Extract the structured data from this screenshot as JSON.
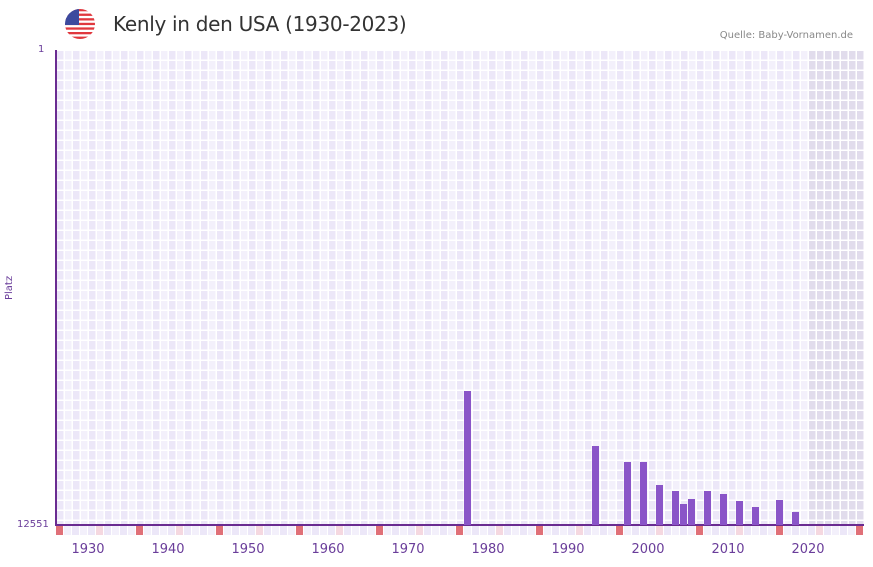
{
  "header": {
    "title": "Kenly in den USA (1930-2023)",
    "source": "Quelle: Baby-Vornamen.de",
    "flag_icon": "us-flag-icon"
  },
  "colors": {
    "bar": "#8a55c8",
    "axis": "#6a2c91",
    "grid_bg_a": "#ece7f8",
    "grid_bg_b": "#f3f0fb",
    "future_shade": "#e1dcec",
    "decade_marker": "#e07078",
    "halfdecade_marker": "#f5d8e0"
  },
  "chart_data": {
    "type": "bar",
    "title": "Kenly in den USA (1930-2023)",
    "xlabel": "",
    "ylabel": "Platz",
    "y_inverted": true,
    "ylim": [
      1,
      12551
    ],
    "xlim": [
      1928,
      2028
    ],
    "y_tick_labels": [
      "1",
      "12551"
    ],
    "x_tick_labels": [
      "1930",
      "1940",
      "1950",
      "1960",
      "1970",
      "1980",
      "1990",
      "2000",
      "2010",
      "2020"
    ],
    "grid": true,
    "shaded_region": {
      "from": 2022,
      "to": 2028,
      "meaning": "no data"
    },
    "x": [
      1979,
      1995,
      1999,
      2001,
      2003,
      2005,
      2006,
      2007,
      2009,
      2011,
      2013,
      2015,
      2018,
      2020
    ],
    "values": [
      9010,
      10464,
      10886,
      10886,
      11494,
      11652,
      11996,
      11864,
      11652,
      11732,
      11917,
      12075,
      11890,
      12207
    ]
  }
}
